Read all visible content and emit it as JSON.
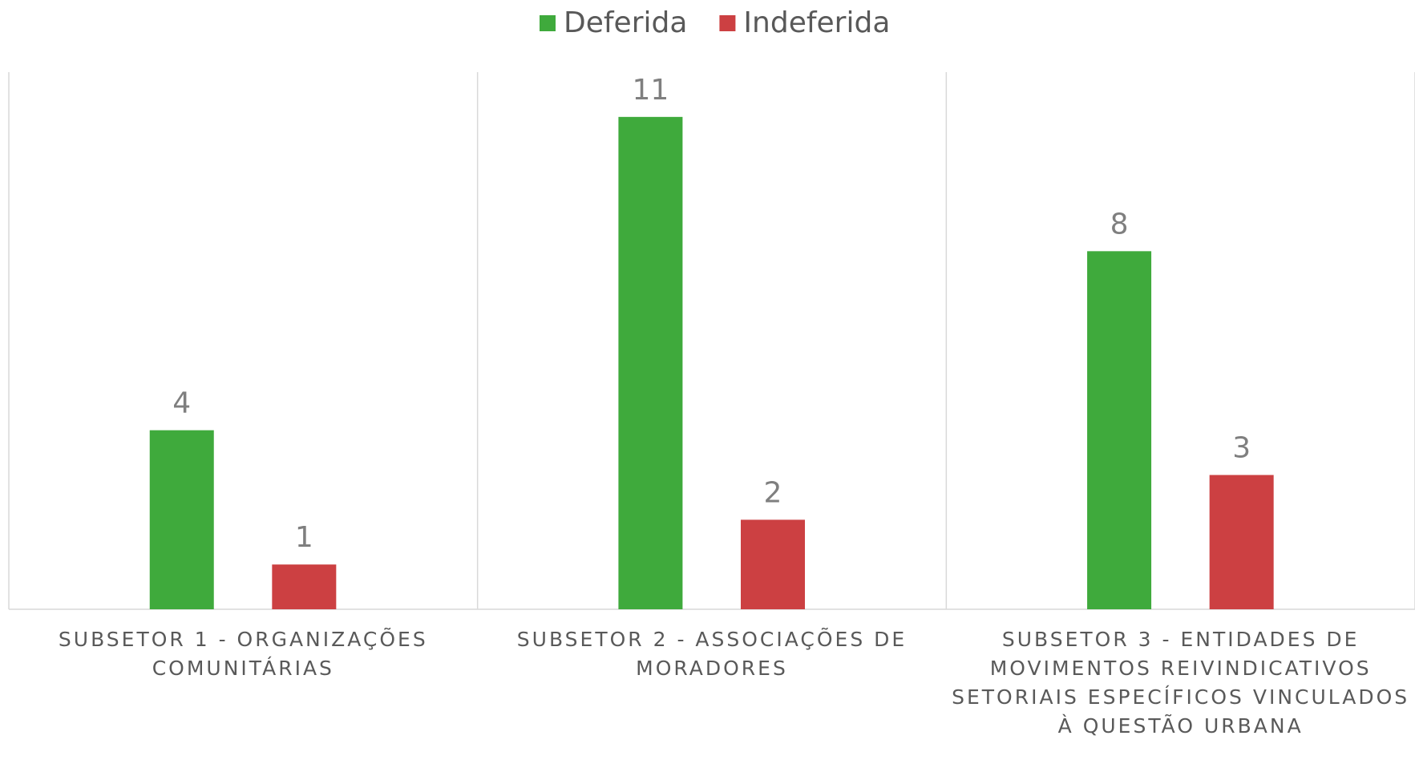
{
  "chart_data": {
    "type": "bar",
    "categories": [
      "SUBSETOR 1 - ORGANIZAÇÕES COMUNITÁRIAS",
      "SUBSETOR 2 - ASSOCIAÇÕES DE MORADORES",
      "SUBSETOR 3 - ENTIDADES DE MOVIMENTOS REIVINDICATIVOS SETORIAIS ESPECÍFICOS VINCULADOS À QUESTÃO URBANA"
    ],
    "series": [
      {
        "name": "Deferida",
        "color": "#3faa3c",
        "values": [
          4,
          11,
          8
        ]
      },
      {
        "name": "Indeferida",
        "color": "#cc4042",
        "values": [
          1,
          2,
          3
        ]
      }
    ],
    "ylim": [
      0,
      12
    ],
    "legend": "top"
  }
}
